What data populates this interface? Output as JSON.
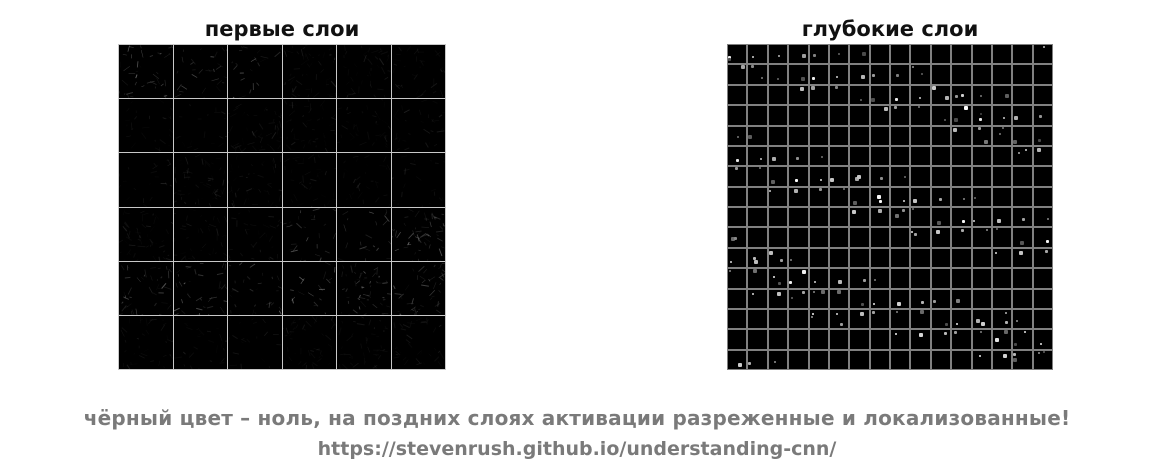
{
  "panels": {
    "left": {
      "title": "первые слои",
      "rows": 6,
      "cols": 6
    },
    "right": {
      "title": "глубокие слои",
      "rows": 16,
      "cols": 16
    }
  },
  "caption": {
    "text": "чёрный цвет – ноль, на поздних слоях активации разреженные и локализованные!",
    "link": "https://stevenrush.github.io/understanding-cnn/"
  },
  "colors": {
    "background": "#ffffff",
    "cell": "#000000",
    "left_grid_lines": "#c8c8c8",
    "right_grid_lines": "#808080",
    "caption": "#7a7a7a"
  }
}
